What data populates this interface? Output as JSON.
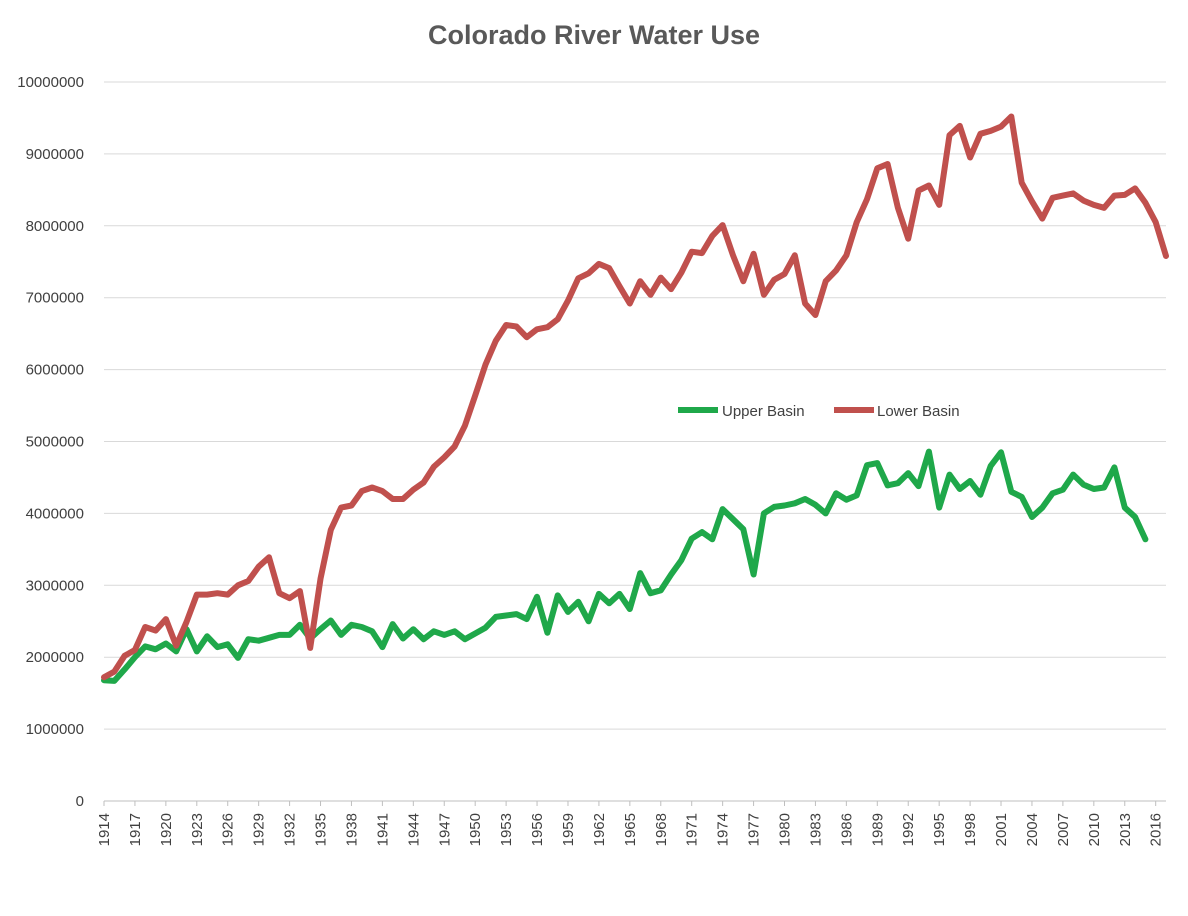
{
  "chart_data": {
    "type": "line",
    "title": "Colorado River Water Use",
    "xlabel": "",
    "ylabel": "",
    "ylim": [
      0,
      10000000
    ],
    "yticks": [
      "0",
      "1000000",
      "2000000",
      "3000000",
      "4000000",
      "5000000",
      "6000000",
      "7000000",
      "8000000",
      "9000000",
      "10000000"
    ],
    "xtick_labels": [
      "1914",
      "1917",
      "1920",
      "1923",
      "1926",
      "1929",
      "1932",
      "1935",
      "1938",
      "1941",
      "1944",
      "1947",
      "1950",
      "1953",
      "1956",
      "1959",
      "1962",
      "1965",
      "1968",
      "1971",
      "1974",
      "1977",
      "1980",
      "1983",
      "1986",
      "1989",
      "1992",
      "1995",
      "1998",
      "2001",
      "2004",
      "2007",
      "2010",
      "2013",
      "2016"
    ],
    "grid": true,
    "legend_position": "center-right",
    "x_start": 1914,
    "series": [
      {
        "name": "Upper Basin",
        "color": "#1fa84a",
        "values": [
          1680000,
          1670000,
          1830000,
          2000000,
          2150000,
          2110000,
          2190000,
          2080000,
          2390000,
          2080000,
          2290000,
          2140000,
          2180000,
          1990000,
          2250000,
          2230000,
          2270000,
          2310000,
          2310000,
          2450000,
          2260000,
          2390000,
          2510000,
          2310000,
          2450000,
          2420000,
          2360000,
          2140000,
          2460000,
          2260000,
          2390000,
          2250000,
          2360000,
          2310000,
          2360000,
          2250000,
          2330000,
          2410000,
          2560000,
          2580000,
          2600000,
          2530000,
          2840000,
          2340000,
          2860000,
          2630000,
          2770000,
          2500000,
          2880000,
          2750000,
          2880000,
          2670000,
          3170000,
          2890000,
          2930000,
          3150000,
          3350000,
          3650000,
          3740000,
          3640000,
          4060000,
          3920000,
          3780000,
          3150000,
          4000000,
          4090000,
          4110000,
          4140000,
          4200000,
          4120000,
          4000000,
          4280000,
          4190000,
          4250000,
          4670000,
          4700000,
          4390000,
          4420000,
          4560000,
          4380000,
          4860000,
          4080000,
          4540000,
          4340000,
          4450000,
          4260000,
          4660000,
          4850000,
          4300000,
          4230000,
          3950000,
          4080000,
          4280000,
          4330000,
          4540000,
          4400000,
          4340000,
          4360000,
          4640000,
          4080000,
          3950000,
          3640000
        ]
      },
      {
        "name": "Lower Basin",
        "color": "#c0504d",
        "values": [
          1720000,
          1800000,
          2020000,
          2100000,
          2420000,
          2370000,
          2530000,
          2160000,
          2490000,
          2870000,
          2870000,
          2890000,
          2870000,
          3000000,
          3060000,
          3260000,
          3390000,
          2890000,
          2820000,
          2920000,
          2130000,
          3090000,
          3770000,
          4080000,
          4110000,
          4310000,
          4360000,
          4310000,
          4200000,
          4200000,
          4330000,
          4430000,
          4650000,
          4780000,
          4930000,
          5220000,
          5640000,
          6070000,
          6400000,
          6620000,
          6600000,
          6450000,
          6560000,
          6590000,
          6700000,
          6960000,
          7270000,
          7340000,
          7470000,
          7410000,
          7160000,
          6920000,
          7230000,
          7040000,
          7280000,
          7120000,
          7350000,
          7640000,
          7620000,
          7860000,
          8010000,
          7590000,
          7230000,
          7610000,
          7040000,
          7250000,
          7330000,
          7590000,
          6920000,
          6760000,
          7230000,
          7380000,
          7590000,
          8050000,
          8370000,
          8800000,
          8860000,
          8250000,
          7820000,
          8490000,
          8560000,
          8290000,
          9260000,
          9390000,
          8950000,
          9280000,
          9320000,
          9380000,
          9520000,
          8600000,
          8340000,
          8100000,
          8390000,
          8420000,
          8450000,
          8350000,
          8290000,
          8250000,
          8420000,
          8430000,
          8520000,
          8320000,
          8050000,
          7580000
        ]
      }
    ]
  }
}
